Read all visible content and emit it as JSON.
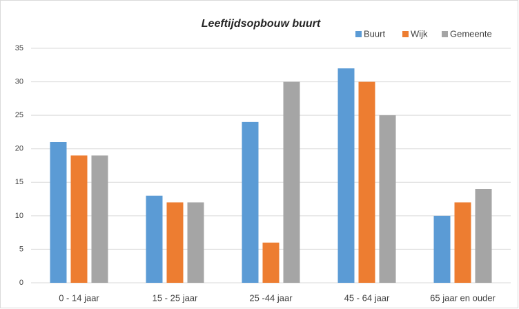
{
  "chart_data": {
    "type": "bar",
    "title": "Leeftijdsopbouw buurt",
    "categories": [
      "0 - 14 jaar",
      "15 - 25 jaar",
      "25 -44 jaar",
      "45 - 64 jaar",
      "65 jaar en ouder"
    ],
    "series": [
      {
        "name": "Buurt",
        "color": "#5b9bd5",
        "values": [
          21,
          13,
          24,
          32,
          10
        ]
      },
      {
        "name": "Wijk",
        "color": "#ed7d31",
        "values": [
          19,
          12,
          6,
          30,
          12
        ]
      },
      {
        "name": "Gemeente",
        "color": "#a5a5a5",
        "values": [
          19,
          12,
          30,
          25,
          14
        ]
      }
    ],
    "ylim": [
      0,
      35
    ],
    "yticks": [
      0,
      5,
      10,
      15,
      20,
      25,
      30,
      35
    ],
    "grid": true,
    "legend": "top-right"
  }
}
